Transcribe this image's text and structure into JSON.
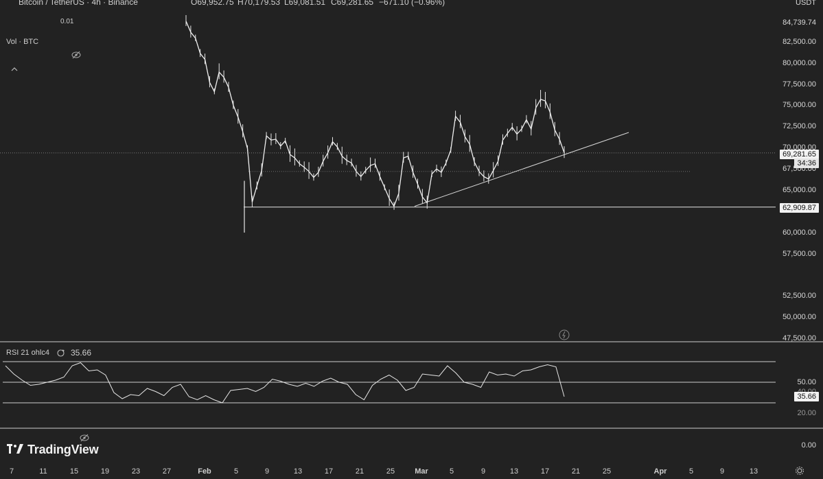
{
  "header": {
    "symbol_title": "Bitcoin / TetherUS · 4h · Binance",
    "open": "O69,952.75",
    "high": "H70,179.53",
    "low": "L69,081.51",
    "close": "C69,281.65",
    "change": "−671.10 (−0.96%)",
    "tick_size": "0.01",
    "volume_label": "Vol · BTC"
  },
  "price_axis": {
    "currency": "USDT",
    "labels": [
      "84,739.74",
      "82,500.00",
      "80,000.00",
      "77,500.00",
      "75,000.00",
      "72,500.00",
      "70,000.00",
      "67,500.00",
      "65,000.00",
      "60,000.00",
      "57,500.00",
      "52,500.00",
      "50,000.00",
      "47,500.00"
    ],
    "current_price_tag": "69,281.65",
    "countdown_tag": "34:36",
    "support_tag": "62,909.87"
  },
  "rsi": {
    "label": "RSI 21 ohlc4",
    "value": "35.66",
    "axis_labels": [
      "50.00",
      "40.00",
      "20.00",
      "0.00"
    ],
    "current_tag": "35.66"
  },
  "time_axis": {
    "labels": [
      "7",
      "11",
      "15",
      "19",
      "23",
      "27",
      "Feb",
      "5",
      "9",
      "13",
      "17",
      "21",
      "25",
      "Mar",
      "5",
      "9",
      "13",
      "17",
      "21",
      "25",
      "Apr",
      "5",
      "9",
      "13"
    ]
  },
  "branding": {
    "logo_text": "TradingView"
  },
  "chart_data": [
    {
      "type": "line",
      "title": "Bitcoin / TetherUS · 4h · Binance",
      "ylabel": "USDT",
      "ylim": [
        47500,
        85000
      ],
      "x_range": [
        "Jan 7",
        "Apr 13"
      ],
      "series": [
        {
          "values": [
            84800,
            83500,
            82800,
            81000,
            80300,
            77600,
            76500,
            78800,
            78200,
            77000,
            74900,
            73500,
            71800,
            69800,
            63500,
            65400,
            67200,
            71300,
            70800,
            70900,
            70100,
            70700,
            69100,
            68700,
            68000,
            67600,
            67100,
            66400,
            67000,
            68300,
            69300,
            70600,
            70000,
            68900,
            68400,
            68100,
            67100,
            66500,
            67200,
            67800,
            68000,
            66500,
            65200,
            63900,
            63000,
            64500,
            68700,
            68900,
            67000,
            65600,
            64100,
            63400,
            66800,
            67400,
            67000,
            68100,
            69600,
            73600,
            72900,
            71200,
            70300,
            68200,
            67100,
            66500,
            66200,
            67200,
            68300,
            70800,
            71600,
            72300,
            71500,
            72100,
            73200,
            72100,
            74600,
            75600,
            75400,
            74100,
            72000,
            70900,
            69300
          ]
        }
      ],
      "annotations": [
        {
          "label": "support line",
          "value": 62909.87
        },
        {
          "label": "current price",
          "value": 69281.65
        },
        {
          "label": "rising trendline",
          "from": [
            "Feb 28",
            63000
          ],
          "to": [
            "Mar 24",
            71700
          ]
        }
      ]
    },
    {
      "type": "line",
      "title": "RSI 21 ohlc4",
      "ylim": [
        0,
        100
      ],
      "bands": [
        30,
        50,
        70
      ],
      "series": [
        {
          "values": [
            66,
            58,
            52,
            47,
            48,
            50,
            52,
            55,
            66,
            69,
            61,
            62,
            57,
            40,
            34,
            38,
            37,
            44,
            41,
            37,
            45,
            48,
            36,
            33,
            37,
            33,
            30,
            42,
            43,
            44,
            41,
            45,
            53,
            51,
            48,
            46,
            49,
            46,
            51,
            54,
            50,
            48,
            38,
            33,
            47,
            53,
            57,
            52,
            42,
            45,
            58,
            57,
            56,
            66,
            59,
            50,
            48,
            45,
            60,
            57,
            58,
            56,
            61,
            62,
            65,
            67,
            65,
            36
          ]
        }
      ]
    }
  ]
}
